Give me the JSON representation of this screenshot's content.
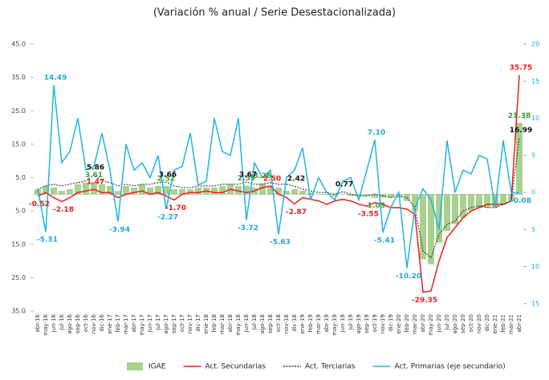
{
  "chart_data": {
    "type": "combo",
    "title": "(Variación % anual / Serie Desestacionalizada)",
    "categories": [
      "abr-16",
      "may-16",
      "jun-16",
      "jul-16",
      "ago-16",
      "sep-16",
      "oct-16",
      "nov-16",
      "dic-16",
      "ene-17",
      "feb-17",
      "mar-17",
      "abr-17",
      "may-17",
      "jun-17",
      "jul-17",
      "ago-17",
      "sep-17",
      "oct-17",
      "nov-17",
      "dic-17",
      "ene-18",
      "feb-18",
      "mar-18",
      "abr-18",
      "may-18",
      "jun-18",
      "jul-18",
      "ago-18",
      "sep-18",
      "oct-18",
      "nov-18",
      "dic-18",
      "ene-19",
      "feb-19",
      "mar-19",
      "abr-19",
      "may-19",
      "jun-19",
      "jul-19",
      "ago-19",
      "sep-19",
      "oct-19",
      "nov-19",
      "dic-19",
      "ene-20",
      "feb-20",
      "mar-20",
      "abr-20",
      "may-20",
      "jun-20",
      "jul-20",
      "ago-20",
      "sep-20",
      "oct-20",
      "nov-20",
      "dic-20",
      "ene-21",
      "feb-21",
      "mar-21",
      "abr-21"
    ],
    "ylim": [
      -35,
      45
    ],
    "yticks": [
      {
        "value": 45,
        "label": "45.0"
      },
      {
        "value": 35,
        "label": "35.0"
      },
      {
        "value": 25,
        "label": "25.0"
      },
      {
        "value": 15,
        "label": "15.0"
      },
      {
        "value": 5,
        "label": "5.0"
      },
      {
        "value": -5,
        "label": "5.0"
      },
      {
        "value": -15,
        "label": "15.0"
      },
      {
        "value": -25,
        "label": "25.0"
      },
      {
        "value": -35,
        "label": "35.0"
      }
    ],
    "y2lim": [
      -16,
      20
    ],
    "y2ticks": [
      20,
      15,
      10,
      5,
      0,
      {
        "value": -5,
        "label": "5"
      },
      {
        "value": -10,
        "label": "10"
      },
      {
        "value": -15,
        "label": "15"
      }
    ],
    "series": [
      {
        "name": "IGAE",
        "type": "bar",
        "color": "#a9d18e",
        "label_color": "#3a9d3a",
        "values": [
          1.5,
          2.5,
          2,
          1,
          1.5,
          3,
          3.5,
          3.61,
          3,
          2.5,
          1,
          2.5,
          2,
          3,
          2,
          2.5,
          2.52,
          1.5,
          1.5,
          1.5,
          2,
          2,
          2,
          2.5,
          3,
          2.5,
          2.59,
          2,
          3.26,
          2.5,
          2,
          1,
          1.5,
          1,
          0.5,
          0,
          0,
          -0.5,
          0,
          -0.5,
          -0.5,
          -0.5,
          -1.03,
          -1,
          -1,
          -1,
          -2,
          -5,
          -19.5,
          -21,
          -14.5,
          -11,
          -9,
          -7,
          -5,
          -4,
          -4,
          -4,
          -3,
          -2,
          21.38
        ],
        "value_labels": [
          null,
          null,
          null,
          null,
          null,
          null,
          null,
          "3.61",
          null,
          null,
          null,
          null,
          null,
          null,
          null,
          null,
          "2.52",
          null,
          null,
          null,
          null,
          null,
          null,
          null,
          null,
          null,
          "2.59",
          null,
          "3.26",
          null,
          null,
          null,
          null,
          null,
          null,
          null,
          null,
          null,
          null,
          null,
          null,
          null,
          "-1.03",
          null,
          null,
          null,
          null,
          null,
          null,
          null,
          null,
          null,
          null,
          null,
          null,
          null,
          null,
          null,
          null,
          null,
          "21.38"
        ]
      },
      {
        "name": "Act. Secundarias",
        "type": "line",
        "color": "#ee1c1c",
        "label_color": "#ee1c1c",
        "values": [
          -0.52,
          0.5,
          -1,
          -2.18,
          -1,
          0.5,
          1,
          1.47,
          0.5,
          0.5,
          -1,
          0,
          0.5,
          1,
          0,
          0.5,
          -0.5,
          -1.7,
          0,
          0.5,
          0.5,
          1,
          0.5,
          0.5,
          1.5,
          1,
          0.5,
          1,
          2,
          2.5,
          0,
          -1,
          -2.87,
          -1,
          -1.5,
          -2,
          -3,
          -2,
          -1.5,
          -2,
          -3,
          -3.55,
          -2.5,
          -3,
          -4,
          -4,
          -4.5,
          -6,
          -29.35,
          -29,
          -20,
          -13,
          -10,
          -7,
          -5,
          -4,
          -3,
          -3,
          -3,
          -2,
          35.75
        ],
        "value_labels": [
          "-0.52",
          null,
          null,
          "-2.18",
          null,
          null,
          null,
          "1.47",
          null,
          null,
          null,
          null,
          null,
          null,
          null,
          null,
          null,
          "-1.70",
          null,
          null,
          null,
          null,
          null,
          null,
          null,
          null,
          null,
          null,
          null,
          "2.50",
          null,
          null,
          "-2.87",
          null,
          null,
          null,
          null,
          null,
          null,
          null,
          null,
          "-3.55",
          null,
          null,
          null,
          null,
          null,
          null,
          "-29.35",
          null,
          null,
          null,
          null,
          null,
          null,
          null,
          null,
          null,
          null,
          null,
          "35.75"
        ]
      },
      {
        "name": "Act. Terciarias",
        "type": "line",
        "style": "dashed",
        "color": "#333333",
        "label_color": "#111111",
        "values": [
          1.5,
          2.5,
          3,
          2.5,
          3,
          3.5,
          4,
          5.86,
          4,
          3.5,
          2.5,
          3,
          2.5,
          3,
          3,
          3.5,
          3.66,
          2.5,
          2,
          2,
          2.5,
          2.5,
          2.5,
          3,
          3,
          3,
          3.67,
          3,
          3,
          3.5,
          3,
          3,
          2.42,
          1.5,
          1,
          0.5,
          0.5,
          0,
          0.77,
          0,
          -0.5,
          -0.5,
          0,
          -0.5,
          -1,
          -0.5,
          -1,
          -4,
          -17,
          -19,
          -12,
          -9,
          -8,
          -5,
          -4,
          -3.5,
          -4,
          -4,
          -3,
          -2,
          16.99
        ],
        "value_labels": [
          null,
          null,
          null,
          null,
          null,
          null,
          null,
          "5.86",
          null,
          null,
          null,
          null,
          null,
          null,
          null,
          null,
          "3.66",
          null,
          null,
          null,
          null,
          null,
          null,
          null,
          null,
          null,
          "3.67",
          null,
          null,
          null,
          null,
          null,
          "2.42",
          null,
          null,
          null,
          null,
          null,
          "0.77",
          null,
          null,
          null,
          null,
          null,
          null,
          null,
          null,
          null,
          null,
          null,
          null,
          null,
          null,
          null,
          null,
          null,
          null,
          null,
          null,
          null,
          "16.99"
        ]
      },
      {
        "name": "Act. Primarias (eje secundario)",
        "type": "line",
        "axis": "y2",
        "color": "#1fb4e6",
        "label_color": "#1fa8dc",
        "values": [
          0.5,
          -5.31,
          14.49,
          4,
          5.5,
          10,
          3,
          3.5,
          8,
          3,
          -3.94,
          6.5,
          3,
          4,
          2,
          5,
          -2.27,
          3,
          3.5,
          8,
          1,
          1.5,
          10,
          5.5,
          5,
          10,
          -3.72,
          4,
          2,
          3,
          -5.63,
          2,
          3,
          6,
          -1,
          2,
          0,
          -1,
          1.5,
          2,
          -1,
          3,
          7.1,
          -5.41,
          -2,
          0,
          -10.2,
          -2,
          0.5,
          -1,
          -5,
          7,
          0,
          3,
          2.5,
          5,
          4.5,
          -2,
          7,
          0,
          -0.08
        ],
        "value_labels": [
          null,
          "-5.31",
          "14.49",
          null,
          null,
          null,
          null,
          null,
          null,
          null,
          "-3.94",
          null,
          null,
          null,
          null,
          null,
          "-2.27",
          null,
          null,
          null,
          null,
          null,
          null,
          null,
          null,
          null,
          "-3.72",
          null,
          null,
          null,
          "-5.63",
          null,
          null,
          null,
          null,
          null,
          null,
          null,
          null,
          null,
          null,
          null,
          "7.10",
          "-5.41",
          null,
          null,
          "-10.20",
          null,
          null,
          null,
          null,
          null,
          null,
          null,
          null,
          null,
          null,
          null,
          null,
          null,
          "-0.08"
        ]
      }
    ]
  }
}
